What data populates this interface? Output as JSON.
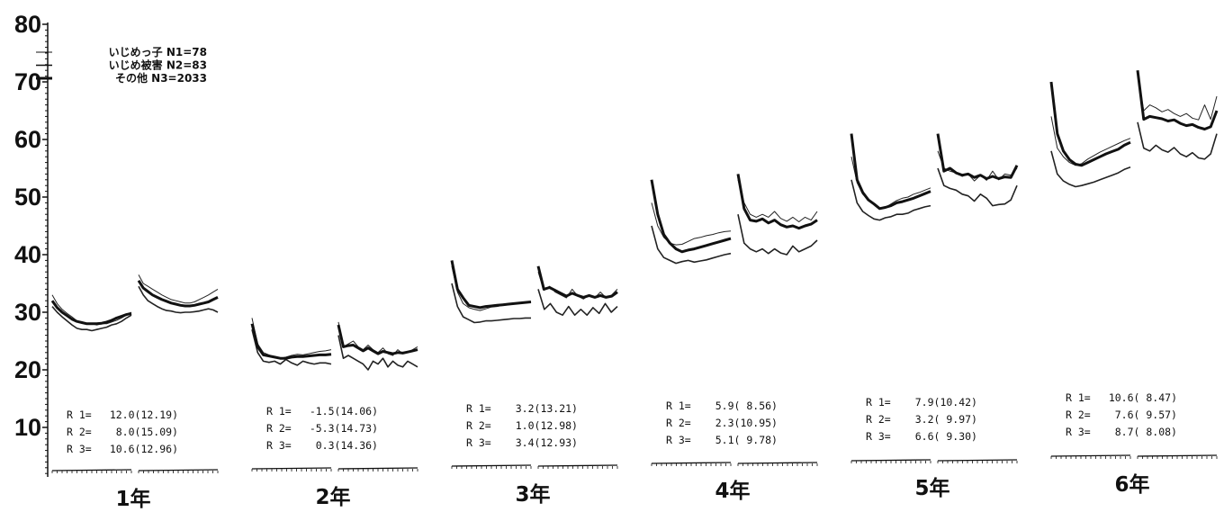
{
  "chart_data": {
    "type": "line",
    "ylim": [
      0,
      80
    ],
    "yticks": [
      "10",
      "20",
      "30",
      "40",
      "50",
      "60",
      "70",
      "80"
    ],
    "grid": false,
    "legend_placement": "top-left",
    "legend": [
      {
        "label": "いじめっ子 N1=78",
        "series": "bully",
        "line_width": 1
      },
      {
        "label": "いじめ被害 N2=83",
        "series": "victim",
        "line_width": 1.6
      },
      {
        "label": "その他 N3=2033",
        "series": "other",
        "line_width": 3
      }
    ],
    "grades": [
      {
        "label": "1年",
        "series": {
          "bully": [
            [
              33,
              31.5,
              30.5,
              29.8,
              29.2,
              28.5,
              28.2,
              28,
              28,
              27.8,
              28,
              28,
              28.3,
              28.6,
              29,
              29.5,
              30
            ],
            [
              36.5,
              35,
              34.5,
              34,
              33.5,
              33,
              32.6,
              32.2,
              32,
              31.8,
              31.6,
              31.6,
              31.8,
              32.2,
              32.6,
              33,
              33.5,
              34
            ]
          ],
          "victim": [
            [
              31,
              30,
              29.2,
              28.5,
              27.8,
              27.2,
              27,
              27,
              26.8,
              27,
              27.2,
              27.4,
              27.8,
              28,
              28.4,
              29,
              29.5
            ],
            [
              34.5,
              33,
              32,
              31.5,
              31,
              30.6,
              30.3,
              30.2,
              30,
              29.9,
              30,
              30,
              30.1,
              30.2,
              30.4,
              30.6,
              30.4,
              30
            ]
          ],
          "other": [
            [
              32,
              30.8,
              30,
              29.4,
              28.8,
              28.4,
              28.2,
              28,
              28,
              28,
              28.1,
              28.3,
              28.6,
              29,
              29.3,
              29.6,
              29.8
            ],
            [
              35.5,
              34.2,
              33.6,
              33,
              32.6,
              32.2,
              31.9,
              31.6,
              31.4,
              31.2,
              31.1,
              31.1,
              31.2,
              31.4,
              31.6,
              31.8,
              32.2,
              32.6
            ]
          ]
        },
        "stats": [
          {
            "label": "R 1=",
            "value": "12.0(12.19)"
          },
          {
            "label": "R 2=",
            "value": "8.0(15.09)"
          },
          {
            "label": "R 3=",
            "value": "10.6(12.96)"
          }
        ]
      },
      {
        "label": "2年",
        "series": {
          "bully": [
            [
              29,
              24.5,
              23,
              22.6,
              22.2,
              22,
              22.2,
              22.5,
              22.7,
              22.6,
              22.8,
              23,
              23.2,
              23.3,
              23.5
            ],
            [
              28.3,
              24,
              24.5,
              25,
              24,
              23.5,
              24.3,
              23.5,
              23,
              23.8,
              22.8,
              22.5,
              23.5,
              22.8,
              23,
              23.5,
              24
            ]
          ],
          "victim": [
            [
              27,
              23,
              21.5,
              21.3,
              21.5,
              21,
              21.8,
              21.2,
              20.8,
              21.5,
              21.2,
              21,
              21.2,
              21.2,
              21
            ],
            [
              26,
              22,
              22.5,
              22,
              21.5,
              21,
              20,
              21.5,
              21,
              22,
              20.5,
              21.5,
              20.8,
              20.5,
              21.5,
              21,
              20.5
            ]
          ],
          "other": [
            [
              28,
              24,
              22.6,
              22.4,
              22.2,
              22,
              22,
              22.2,
              22.3,
              22.3,
              22.4,
              22.5,
              22.6,
              22.6,
              22.7
            ],
            [
              27.8,
              24,
              24.2,
              24.3,
              23.8,
              23.3,
              23.8,
              23.3,
              22.8,
              23.2,
              23,
              22.8,
              23,
              22.9,
              23.1,
              23.3,
              23.5
            ]
          ]
        },
        "stats": [
          {
            "label": "R 1=",
            "value": "-1.5(14.06)"
          },
          {
            "label": "R 2=",
            "value": "-5.3(14.73)"
          },
          {
            "label": "R 3=",
            "value": "0.3(14.36)"
          }
        ]
      },
      {
        "label": "3年",
        "series": {
          "bully": [
            [
              38,
              33.5,
              31.5,
              30.8,
              30.5,
              30.3,
              30.6,
              30.9,
              31,
              31.2,
              31.3,
              31.4,
              31.5,
              31.6,
              31.8
            ],
            [
              37,
              33.8,
              34.5,
              33.5,
              33,
              32.5,
              34,
              32.8,
              32.3,
              33,
              32.5,
              33.5,
              32.5,
              33,
              34
            ]
          ],
          "victim": [
            [
              35,
              31,
              29.2,
              28.7,
              28.2,
              28.3,
              28.5,
              28.5,
              28.6,
              28.7,
              28.8,
              28.9,
              28.9,
              29,
              29
            ],
            [
              34,
              30.5,
              31.5,
              30,
              29.5,
              31,
              29.5,
              30.5,
              29.5,
              30.8,
              29.8,
              31.5,
              30,
              31
            ]
          ],
          "other": [
            [
              39,
              34,
              32.5,
              31.2,
              31,
              30.8,
              31,
              31.1,
              31.2,
              31.3,
              31.4,
              31.5,
              31.6,
              31.7,
              31.8
            ],
            [
              38,
              34,
              34.3,
              33.8,
              33.3,
              32.8,
              33.3,
              32.9,
              32.6,
              32.9,
              32.6,
              32.9,
              32.6,
              32.8,
              33.5
            ]
          ]
        },
        "stats": [
          {
            "label": "R 1=",
            "value": "3.2(13.21)"
          },
          {
            "label": "R 2=",
            "value": "1.0(12.98)"
          },
          {
            "label": "R 3=",
            "value": "3.4(12.93)"
          }
        ]
      },
      {
        "label": "4年",
        "series": {
          "bully": [
            [
              49,
              45,
              43,
              42,
              41.7,
              41.8,
              42.3,
              42.8,
              43,
              43.3,
              43.5,
              43.8,
              44,
              44.1
            ],
            [
              53,
              49,
              47,
              46.5,
              47,
              46.5,
              47.5,
              46.3,
              45.8,
              46.5,
              45.7,
              46.5,
              46,
              47.5
            ]
          ],
          "victim": [
            [
              45,
              41,
              39.5,
              39,
              38.5,
              38.8,
              39,
              38.7,
              38.9,
              39.1,
              39.4,
              39.7,
              40,
              40.2
            ],
            [
              47,
              42,
              41,
              40.5,
              41,
              40.2,
              41,
              40.3,
              40,
              41.5,
              40.5,
              41,
              41.5,
              42.5
            ]
          ],
          "other": [
            [
              53,
              47,
              43.5,
              42,
              41,
              40.5,
              40.8,
              41,
              41.3,
              41.6,
              41.9,
              42.2,
              42.5,
              42.8
            ],
            [
              54,
              48,
              46,
              45.8,
              46.2,
              45.5,
              46,
              45.2,
              44.8,
              45,
              44.6,
              45,
              45.3,
              46
            ]
          ]
        },
        "stats": [
          {
            "label": "R 1=",
            "value": "5.9( 8.56)"
          },
          {
            "label": "R 2=",
            "value": "2.3(10.95)"
          },
          {
            "label": "R 3=",
            "value": "5.1( 9.78)"
          }
        ]
      },
      {
        "label": "5年",
        "series": {
          "bully": [
            [
              57,
              52.5,
              50.5,
              49.5,
              48.7,
              48,
              48.2,
              48.8,
              49.4,
              49.8,
              50,
              50.5,
              50.8,
              51.2,
              51.6
            ],
            [
              58,
              55,
              54.5,
              54.2,
              53.6,
              54,
              52.8,
              53.8,
              52.9,
              54.5,
              53,
              54,
              53.8,
              55
            ]
          ],
          "victim": [
            [
              53,
              49,
              47.5,
              46.8,
              46.2,
              46,
              46.4,
              46.6,
              47,
              47,
              47.2,
              47.7,
              48,
              48.3,
              48.5
            ],
            [
              55,
              52,
              51.5,
              51.2,
              50.5,
              50.2,
              49.3,
              50.5,
              49.8,
              48.5,
              48.7,
              48.8,
              49.5,
              52
            ]
          ],
          "other": [
            [
              61,
              53,
              50.8,
              49.5,
              48.8,
              48,
              48.2,
              48.5,
              49,
              49.2,
              49.5,
              49.8,
              50.2,
              50.6,
              51
            ],
            [
              61,
              54.5,
              55,
              54.2,
              53.8,
              54,
              53.4,
              53.8,
              53.2,
              53.6,
              53.2,
              53.5,
              53.4,
              55.5
            ]
          ]
        },
        "stats": [
          {
            "label": "R 1=",
            "value": "7.9(10.42)"
          },
          {
            "label": "R 2=",
            "value": "3.2( 9.97)"
          },
          {
            "label": "R 3=",
            "value": "6.6( 9.30)"
          }
        ]
      },
      {
        "label": "6年",
        "series": {
          "bully": [
            [
              64,
              58.5,
              57,
              56,
              55.5,
              55.8,
              56.6,
              57.2,
              57.8,
              58.3,
              58.8,
              59.3,
              59.8,
              60.2
            ],
            [
              71,
              65,
              66,
              65.5,
              64.8,
              65.2,
              64.5,
              64,
              64.5,
              63.7,
              63.4,
              66,
              63.5,
              67.5
            ]
          ],
          "victim": [
            [
              58,
              54,
              52.8,
              52.2,
              51.8,
              52,
              52.3,
              52.6,
              53,
              53.4,
              53.8,
              54.2,
              54.8,
              55.2
            ],
            [
              63,
              58.5,
              58,
              59,
              58.2,
              57.8,
              58.6,
              57.5,
              57,
              57.7,
              56.8,
              56.6,
              57.5,
              61
            ]
          ],
          "other": [
            [
              70,
              61,
              58,
              56.5,
              55.7,
              55.5,
              56,
              56.5,
              57,
              57.5,
              57.9,
              58.3,
              59,
              59.5
            ],
            [
              72,
              63.5,
              64,
              63.8,
              63.6,
              63.2,
              63.4,
              62.8,
              62.4,
              62.6,
              62.1,
              61.8,
              62.2,
              65
            ]
          ]
        },
        "stats": [
          {
            "label": "R 1=",
            "value": "10.6( 8.47)"
          },
          {
            "label": "R 2=",
            "value": "7.6( 9.57)"
          },
          {
            "label": "R 3=",
            "value": "8.7( 8.08)"
          }
        ]
      }
    ]
  }
}
